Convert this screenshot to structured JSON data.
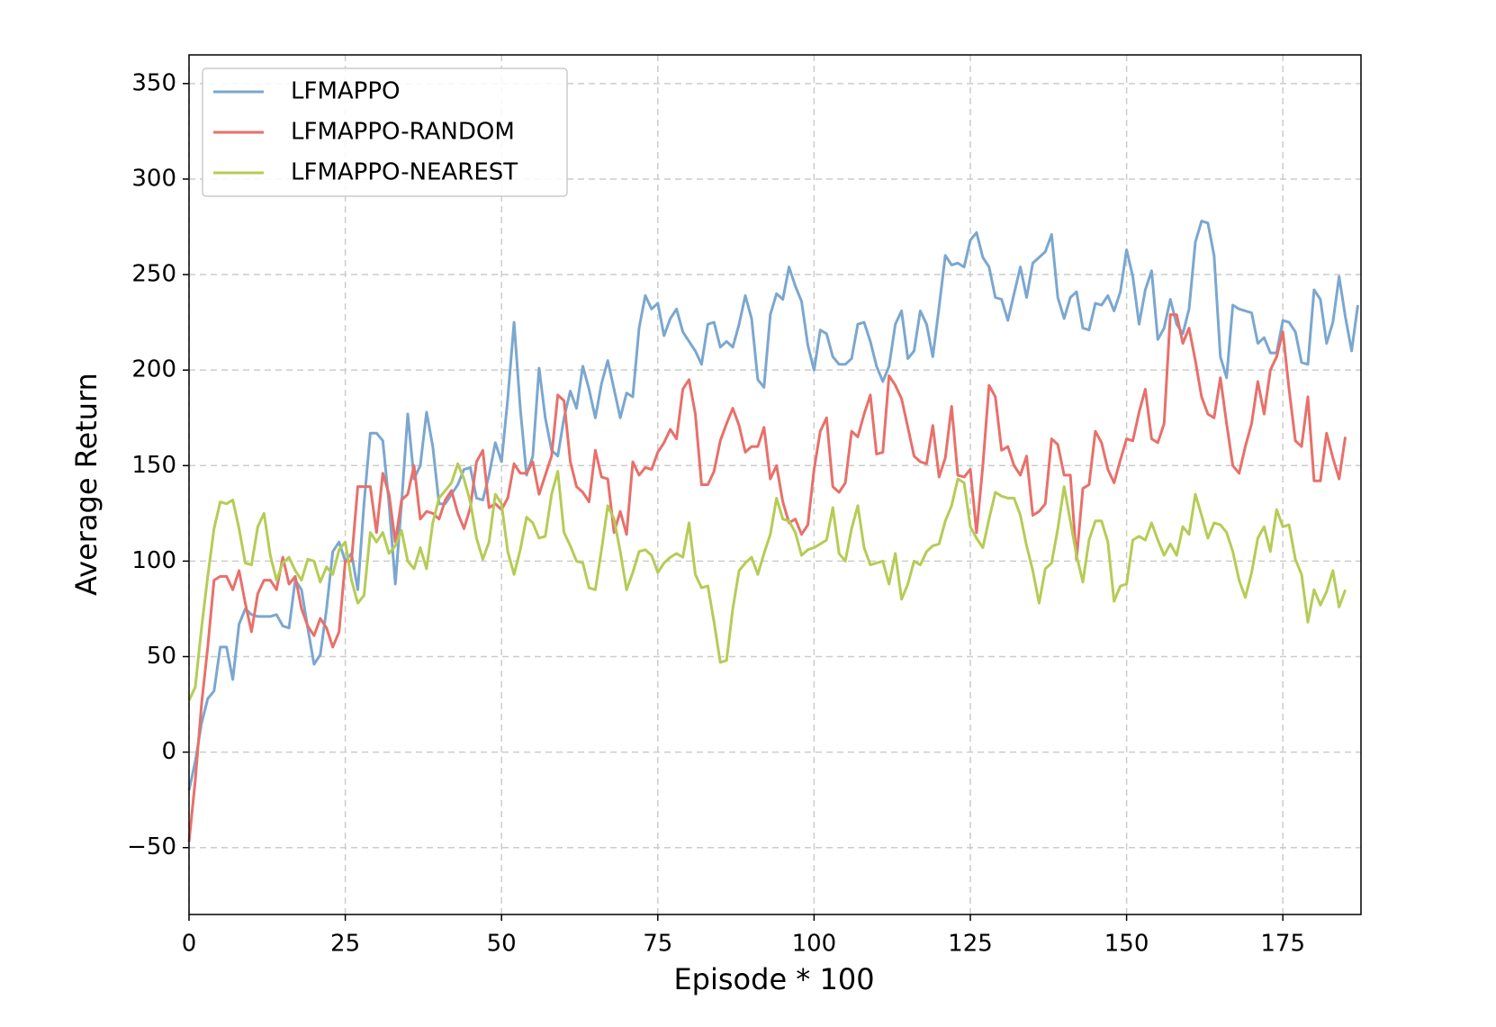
{
  "chart_data": {
    "type": "line",
    "x_label": "Episode * 100",
    "y_label": "Average Return",
    "x": [
      0,
      1,
      2,
      3,
      4,
      5,
      6,
      7,
      8,
      9,
      10,
      11,
      12,
      13,
      14,
      15,
      16,
      17,
      18,
      19,
      20,
      21,
      22,
      23,
      24,
      25,
      26,
      27,
      28,
      29,
      30,
      31,
      32,
      33,
      34,
      35,
      36,
      37,
      38,
      39,
      40,
      41,
      42,
      43,
      44,
      45,
      46,
      47,
      48,
      49,
      50,
      51,
      52,
      53,
      54,
      55,
      56,
      57,
      58,
      59,
      60,
      61,
      62,
      63,
      64,
      65,
      66,
      67,
      68,
      69,
      70,
      71,
      72,
      73,
      74,
      75,
      76,
      77,
      78,
      79,
      80,
      81,
      82,
      83,
      84,
      85,
      86,
      87,
      88,
      89,
      90,
      91,
      92,
      93,
      94,
      95,
      96,
      97,
      98,
      99,
      100,
      101,
      102,
      103,
      104,
      105,
      106,
      107,
      108,
      109,
      110,
      111,
      112,
      113,
      114,
      115,
      116,
      117,
      118,
      119,
      120,
      121,
      122,
      123,
      124,
      125,
      126,
      127,
      128,
      129,
      130,
      131,
      132,
      133,
      134,
      135,
      136,
      137,
      138,
      139,
      140,
      141,
      142,
      143,
      144,
      145,
      146,
      147,
      148,
      149,
      150,
      151,
      152,
      153,
      154,
      155,
      156,
      157,
      158,
      159,
      160,
      161,
      162,
      163,
      164,
      165,
      166,
      167,
      168,
      169,
      170,
      171,
      172,
      173,
      174,
      175,
      176,
      177,
      178,
      179,
      180,
      181,
      182,
      183,
      184,
      185,
      186,
      187
    ],
    "series": [
      {
        "name": "LFMAPPO",
        "color": "#7ba7cf",
        "values": [
          -20,
          -5,
          15,
          28,
          32,
          55,
          55,
          38,
          67,
          75,
          72,
          71,
          71,
          71,
          72,
          66,
          65,
          90,
          85,
          65,
          46,
          51,
          75,
          105,
          110,
          100,
          104,
          85,
          130,
          167,
          167,
          163,
          130,
          88,
          130,
          177,
          143,
          150,
          178,
          160,
          130,
          130,
          135,
          140,
          148,
          149,
          133,
          132,
          145,
          162,
          152,
          185,
          225,
          180,
          145,
          155,
          201,
          175,
          158,
          155,
          175,
          189,
          180,
          202,
          190,
          175,
          193,
          205,
          190,
          175,
          188,
          186,
          222,
          239,
          232,
          235,
          218,
          227,
          232,
          220,
          215,
          210,
          203,
          224,
          225,
          212,
          215,
          212,
          224,
          239,
          227,
          195,
          191,
          229,
          240,
          237,
          254,
          244,
          236,
          213,
          200,
          221,
          219,
          207,
          203,
          203,
          206,
          224,
          225,
          215,
          202,
          194,
          202,
          224,
          231,
          206,
          210,
          231,
          224,
          207,
          233,
          260,
          255,
          256,
          254,
          268,
          272,
          259,
          254,
          238,
          237,
          226,
          240,
          254,
          238,
          256,
          259,
          262,
          271,
          238,
          227,
          238,
          241,
          222,
          221,
          235,
          234,
          239,
          231,
          241,
          263,
          249,
          224,
          242,
          252,
          216,
          222,
          237,
          224,
          219,
          232,
          267,
          278,
          277,
          260,
          207,
          196,
          234,
          232,
          231,
          230,
          214,
          217,
          209,
          209,
          226,
          225,
          220,
          204,
          203,
          242,
          237,
          214,
          225,
          249,
          228,
          210,
          234
        ]
      },
      {
        "name": "LFMAPPO-RANDOM",
        "color": "#e8706a",
        "values": [
          -47,
          -15,
          25,
          55,
          90,
          92,
          92,
          85,
          95,
          78,
          63,
          83,
          90,
          90,
          85,
          102,
          88,
          92,
          75,
          66,
          61,
          70,
          65,
          55,
          63,
          100,
          100,
          139,
          139,
          139,
          115,
          146,
          135,
          110,
          132,
          135,
          150,
          122,
          126,
          125,
          122,
          132,
          137,
          125,
          117,
          128,
          152,
          158,
          128,
          130,
          127,
          133,
          151,
          146,
          146,
          152,
          135,
          145,
          155,
          187,
          184,
          152,
          139,
          136,
          131,
          158,
          144,
          143,
          115,
          126,
          114,
          152,
          145,
          149,
          148,
          157,
          162,
          169,
          164,
          190,
          195,
          177,
          140,
          140,
          147,
          163,
          172,
          180,
          171,
          157,
          160,
          160,
          170,
          143,
          150,
          131,
          120,
          122,
          114,
          119,
          148,
          168,
          175,
          139,
          136,
          141,
          168,
          165,
          177,
          187,
          156,
          157,
          197,
          192,
          185,
          170,
          155,
          152,
          151,
          171,
          144,
          154,
          181,
          145,
          144,
          148,
          115,
          150,
          192,
          186,
          158,
          160,
          150,
          145,
          155,
          124,
          126,
          130,
          164,
          161,
          145,
          145,
          101,
          138,
          140,
          168,
          162,
          148,
          141,
          153,
          164,
          163,
          178,
          190,
          164,
          162,
          172,
          229,
          229,
          214,
          222,
          205,
          186,
          177,
          175,
          196,
          172,
          150,
          146,
          160,
          172,
          194,
          177,
          200,
          207,
          220,
          190,
          163,
          160,
          186,
          142,
          142,
          167,
          154,
          143,
          165,
          null,
          null
        ]
      },
      {
        "name": "LFMAPPO-NEAREST",
        "color": "#b5cc55",
        "values": [
          27,
          34,
          65,
          92,
          117,
          131,
          130,
          132,
          117,
          99,
          98,
          118,
          125,
          103,
          90,
          99,
          102,
          95,
          90,
          101,
          100,
          89,
          97,
          93,
          106,
          110,
          90,
          78,
          82,
          115,
          110,
          115,
          104,
          108,
          116,
          100,
          96,
          107,
          96,
          120,
          133,
          137,
          141,
          151,
          143,
          131,
          112,
          101,
          110,
          135,
          130,
          105,
          93,
          106,
          123,
          120,
          112,
          113,
          135,
          147,
          115,
          108,
          100,
          99,
          86,
          85,
          106,
          129,
          122,
          105,
          85,
          94,
          105,
          106,
          103,
          94,
          99,
          102,
          104,
          102,
          120,
          93,
          86,
          87,
          68,
          47,
          48,
          75,
          95,
          99,
          102,
          93,
          104,
          114,
          133,
          122,
          121,
          115,
          103,
          106,
          107,
          109,
          111,
          128,
          104,
          100,
          117,
          129,
          107,
          98,
          99,
          100,
          88,
          104,
          80,
          88,
          100,
          98,
          105,
          108,
          109,
          121,
          129,
          143,
          141,
          118,
          112,
          107,
          122,
          136,
          134,
          133,
          133,
          124,
          108,
          95,
          78,
          96,
          99,
          117,
          139,
          121,
          103,
          89,
          111,
          121,
          121,
          110,
          79,
          87,
          88,
          111,
          113,
          111,
          120,
          111,
          103,
          109,
          103,
          118,
          114,
          135,
          124,
          112,
          120,
          119,
          115,
          105,
          90,
          81,
          94,
          112,
          118,
          105,
          127,
          118,
          119,
          101,
          93,
          68,
          85,
          77,
          84,
          95,
          76,
          85,
          null,
          null
        ]
      }
    ],
    "xlim": [
      0,
      187.5
    ],
    "ylim": [
      -85,
      365
    ],
    "xticks": [
      0,
      25,
      50,
      75,
      100,
      125,
      150,
      175
    ],
    "yticks": [
      {
        "value": -50,
        "label": "−50"
      },
      0,
      50,
      100,
      150,
      200,
      250,
      300,
      350
    ],
    "grid": true,
    "legend": "upper left"
  }
}
